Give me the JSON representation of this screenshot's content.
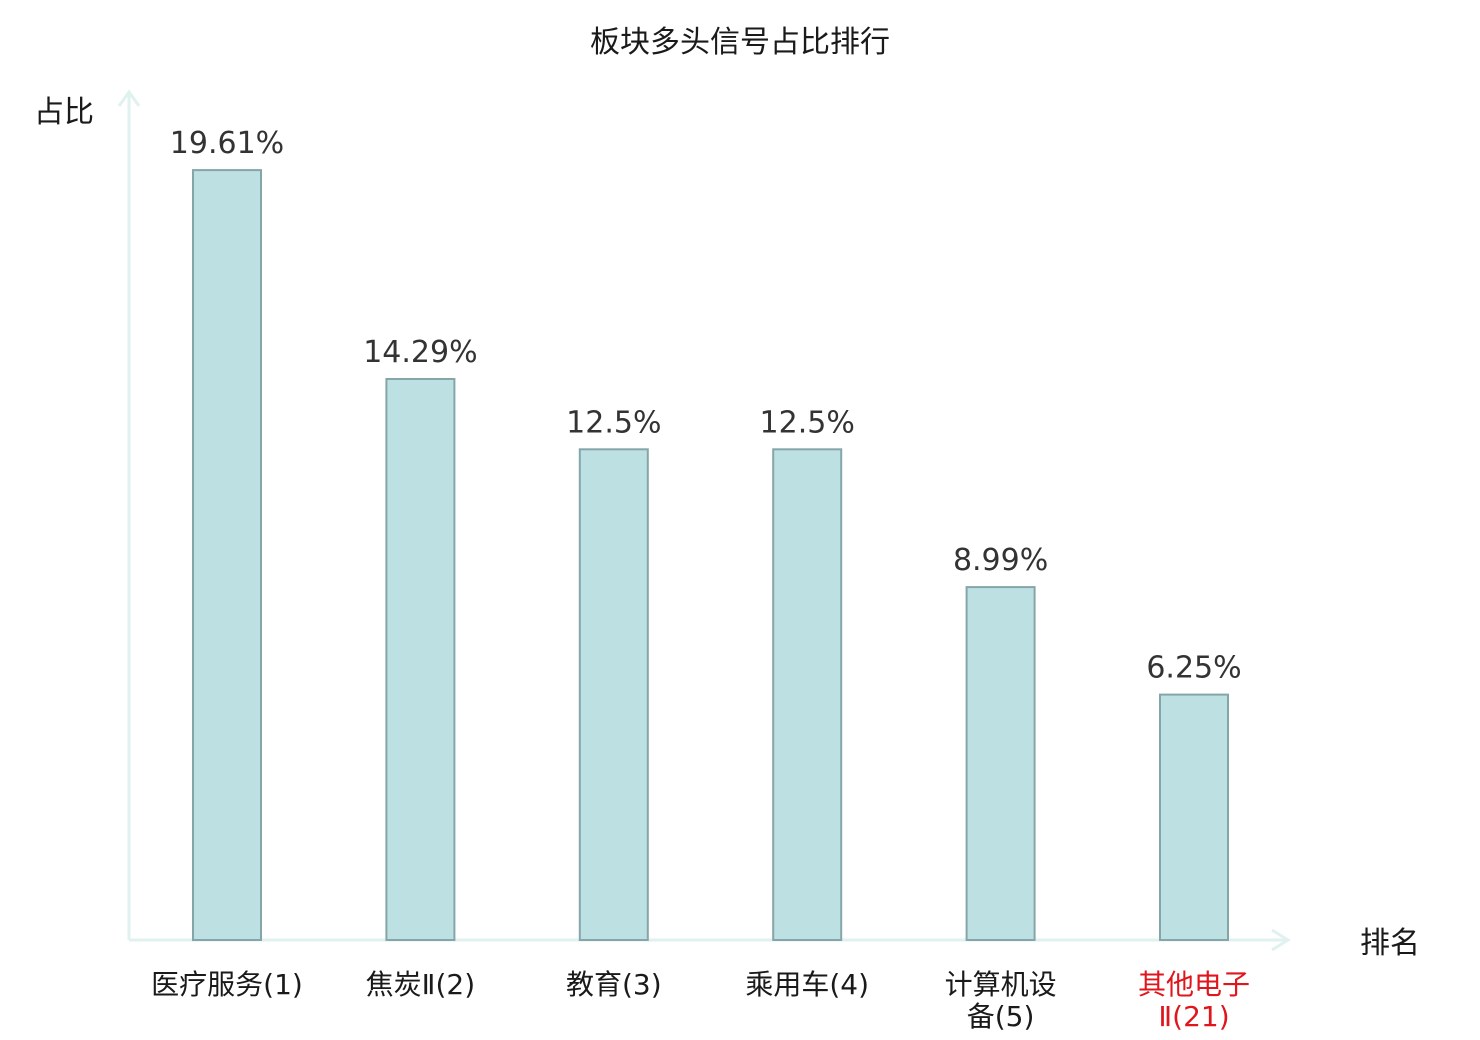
{
  "chart_data": {
    "type": "bar",
    "title": "板块多头信号占比排行",
    "ylabel": "占比",
    "xlabel": "排名",
    "ylim": [
      0,
      21.6
    ],
    "grid": false,
    "legend": "none",
    "categories": [
      {
        "lines": [
          "医疗服务(1)"
        ],
        "highlight": false
      },
      {
        "lines": [
          "焦炭Ⅱ(2)"
        ],
        "highlight": false
      },
      {
        "lines": [
          "教育(3)"
        ],
        "highlight": false
      },
      {
        "lines": [
          "乘用车(4)"
        ],
        "highlight": false
      },
      {
        "lines": [
          "计算机设",
          "备(5)"
        ],
        "highlight": false
      },
      {
        "lines": [
          "其他电子",
          "Ⅱ(21)"
        ],
        "highlight": true
      }
    ],
    "values": [
      19.61,
      14.29,
      12.5,
      12.5,
      8.99,
      6.25
    ],
    "value_labels": [
      "19.61%",
      "14.29%",
      "12.5%",
      "12.5%",
      "8.99%",
      "6.25%"
    ]
  },
  "colors": {
    "bar_fill": "#bde0e2",
    "bar_stroke": "#85a6a8",
    "axis": "#dff2ef",
    "text": "#1a1a1a",
    "value_text": "#333333",
    "highlight_text": "#e0161d"
  }
}
